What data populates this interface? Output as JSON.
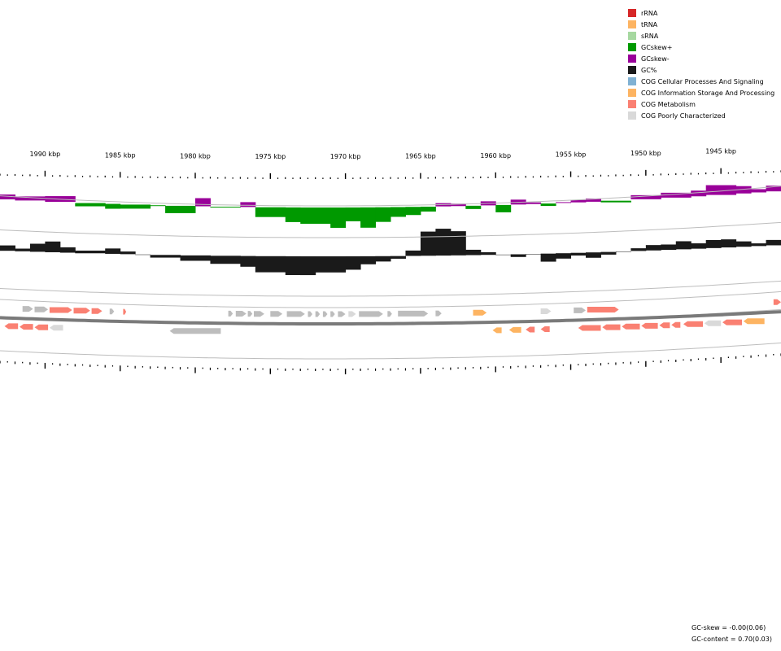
{
  "legend": [
    {
      "label": "rRNA",
      "color": "#d62728"
    },
    {
      "label": "tRNA",
      "color": "#fdb462"
    },
    {
      "label": "sRNA",
      "color": "#a6d8a0"
    },
    {
      "label": "GCskew+",
      "color": "#009900"
    },
    {
      "label": "GCskew-",
      "color": "#990099"
    },
    {
      "label": "GC%",
      "color": "#1a1a1a"
    },
    {
      "label": "COG Cellular Processes And Signaling",
      "color": "#80b1d3"
    },
    {
      "label": "COG Information Storage And Processing",
      "color": "#fdb462"
    },
    {
      "label": "COG Metabolism",
      "color": "#fa8072"
    },
    {
      "label": "COG Poorly Characterized",
      "color": "#d9d9d9"
    }
  ],
  "axis": {
    "unit": "kbp",
    "ticks": [
      1990,
      1985,
      1980,
      1975,
      1970,
      1965,
      1960,
      1955,
      1950,
      1945
    ]
  },
  "stats": {
    "gc_skew": "GC-skew = -0.00(0.06)",
    "gc_content": "GC-content = 0.70(0.03)"
  },
  "colors": {
    "gene_default": "#bdbdbd",
    "metabolism": "#fa8072",
    "info_storage": "#fdb462",
    "poorly_characterized": "#d9d9d9",
    "skew_plus": "#009900",
    "skew_minus": "#990099",
    "gc": "#1a1a1a"
  },
  "chart_data": {
    "type": "area",
    "x_range_kbp": [
      1993,
      1941
    ],
    "gc_skew_profile": {
      "x": [
        1993,
        1992,
        1990,
        1988,
        1986,
        1985,
        1983,
        1982,
        1980,
        1979,
        1977,
        1976,
        1974,
        1973,
        1971,
        1970,
        1969,
        1968,
        1967,
        1966,
        1965,
        1964,
        1963,
        1962,
        1961,
        1960,
        1959,
        1958,
        1957,
        1956,
        1955,
        1954,
        1953,
        1951,
        1949,
        1947,
        1946,
        1944,
        1943,
        1942,
        1941
      ],
      "values": [
        0.06,
        0.05,
        0.07,
        -0.04,
        -0.06,
        -0.05,
        -0.01,
        -0.09,
        0.1,
        -0.01,
        0.06,
        -0.12,
        -0.18,
        -0.2,
        -0.25,
        -0.17,
        -0.25,
        -0.18,
        -0.12,
        -0.1,
        -0.06,
        0.04,
        0.03,
        -0.04,
        0.05,
        -0.09,
        0.06,
        0.02,
        -0.03,
        0.01,
        0.03,
        0.04,
        -0.02,
        0.05,
        0.06,
        0.07,
        0.12,
        0.09,
        0.04,
        0.07,
        0.05
      ]
    },
    "gc_content_profile": {
      "x": [
        1993,
        1992,
        1991,
        1990,
        1989,
        1988,
        1986,
        1985,
        1984,
        1983,
        1981,
        1979,
        1977,
        1976,
        1974,
        1973,
        1972,
        1970,
        1969,
        1968,
        1967,
        1966,
        1965,
        1964,
        1963,
        1962,
        1961,
        1960,
        1959,
        1958,
        1957,
        1956,
        1955,
        1954,
        1953,
        1952,
        1951,
        1950,
        1949,
        1948,
        1947,
        1946,
        1945,
        1944,
        1943,
        1942,
        1941
      ],
      "values": [
        0.72,
        0.71,
        0.73,
        0.74,
        0.72,
        0.71,
        0.72,
        0.71,
        0.7,
        0.69,
        0.68,
        0.67,
        0.66,
        0.64,
        0.63,
        0.63,
        0.64,
        0.65,
        0.67,
        0.68,
        0.69,
        0.72,
        0.79,
        0.8,
        0.79,
        0.72,
        0.71,
        0.7,
        0.69,
        0.7,
        0.67,
        0.68,
        0.69,
        0.68,
        0.69,
        0.7,
        0.71,
        0.72,
        0.72,
        0.73,
        0.72,
        0.73,
        0.73,
        0.72,
        0.71,
        0.72,
        0.71
      ]
    },
    "genes_outer": [
      {
        "start": 1991.5,
        "end": 1990.8,
        "cat": "default"
      },
      {
        "start": 1990.7,
        "end": 1989.8,
        "cat": "default"
      },
      {
        "start": 1989.7,
        "end": 1988.2,
        "cat": "metabolism"
      },
      {
        "start": 1988.1,
        "end": 1987.0,
        "cat": "metabolism"
      },
      {
        "start": 1986.9,
        "end": 1986.2,
        "cat": "metabolism"
      },
      {
        "start": 1985.7,
        "end": 1985.4,
        "cat": "default"
      },
      {
        "start": 1984.8,
        "end": 1984.6,
        "cat": "metabolism"
      },
      {
        "start": 1977.8,
        "end": 1977.5,
        "cat": "default"
      },
      {
        "start": 1977.3,
        "end": 1976.6,
        "cat": "default"
      },
      {
        "start": 1976.5,
        "end": 1976.2,
        "cat": "default"
      },
      {
        "start": 1976.1,
        "end": 1975.4,
        "cat": "default"
      },
      {
        "start": 1975.0,
        "end": 1974.2,
        "cat": "default"
      },
      {
        "start": 1973.9,
        "end": 1972.7,
        "cat": "default"
      },
      {
        "start": 1972.5,
        "end": 1972.2,
        "cat": "default"
      },
      {
        "start": 1972.0,
        "end": 1971.7,
        "cat": "default"
      },
      {
        "start": 1971.5,
        "end": 1971.2,
        "cat": "default"
      },
      {
        "start": 1971.0,
        "end": 1970.7,
        "cat": "default"
      },
      {
        "start": 1970.5,
        "end": 1970.0,
        "cat": "default"
      },
      {
        "start": 1969.8,
        "end": 1969.3,
        "cat": "poorly"
      },
      {
        "start": 1969.1,
        "end": 1967.5,
        "cat": "default"
      },
      {
        "start": 1967.2,
        "end": 1966.9,
        "cat": "default"
      },
      {
        "start": 1966.5,
        "end": 1964.5,
        "cat": "default"
      },
      {
        "start": 1964.0,
        "end": 1963.6,
        "cat": "default"
      },
      {
        "start": 1961.5,
        "end": 1960.6,
        "cat": "info"
      },
      {
        "start": 1957.0,
        "end": 1956.3,
        "cat": "poorly"
      },
      {
        "start": 1954.8,
        "end": 1954.0,
        "cat": "default"
      },
      {
        "start": 1953.9,
        "end": 1951.8,
        "cat": "metabolism"
      },
      {
        "start": 1941.5,
        "end": 1941.0,
        "cat": "metabolism"
      }
    ],
    "genes_inner": [
      {
        "start": 1992.7,
        "end": 1991.8,
        "cat": "metabolism"
      },
      {
        "start": 1991.7,
        "end": 1990.8,
        "cat": "metabolism"
      },
      {
        "start": 1990.7,
        "end": 1989.8,
        "cat": "metabolism"
      },
      {
        "start": 1989.7,
        "end": 1988.8,
        "cat": "poorly"
      },
      {
        "start": 1981.7,
        "end": 1978.3,
        "cat": "default"
      },
      {
        "start": 1960.2,
        "end": 1959.6,
        "cat": "info"
      },
      {
        "start": 1959.1,
        "end": 1958.3,
        "cat": "info"
      },
      {
        "start": 1958.0,
        "end": 1957.4,
        "cat": "metabolism"
      },
      {
        "start": 1957.0,
        "end": 1956.4,
        "cat": "metabolism"
      },
      {
        "start": 1954.5,
        "end": 1953.0,
        "cat": "metabolism"
      },
      {
        "start": 1952.9,
        "end": 1951.7,
        "cat": "metabolism"
      },
      {
        "start": 1951.6,
        "end": 1950.4,
        "cat": "metabolism"
      },
      {
        "start": 1950.3,
        "end": 1949.2,
        "cat": "metabolism"
      },
      {
        "start": 1949.1,
        "end": 1948.4,
        "cat": "metabolism"
      },
      {
        "start": 1948.3,
        "end": 1947.7,
        "cat": "metabolism"
      },
      {
        "start": 1947.5,
        "end": 1946.2,
        "cat": "metabolism"
      },
      {
        "start": 1946.1,
        "end": 1945.0,
        "cat": "poorly"
      },
      {
        "start": 1944.9,
        "end": 1943.6,
        "cat": "metabolism"
      },
      {
        "start": 1943.5,
        "end": 1942.1,
        "cat": "info"
      }
    ]
  }
}
